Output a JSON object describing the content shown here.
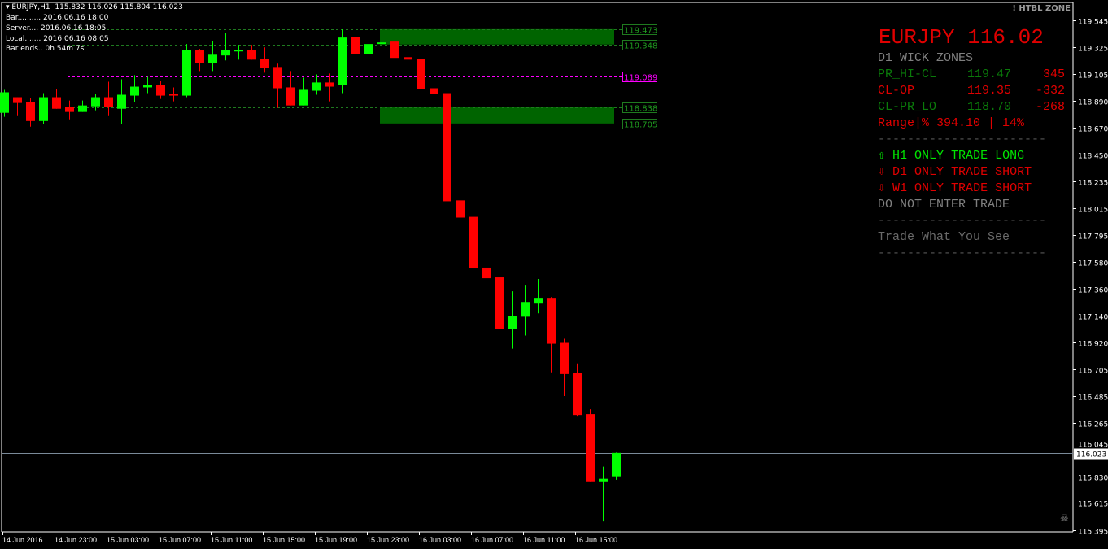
{
  "header": {
    "symbol_line": "EURJPY,H1  115.832 116.026 115.804 116.023",
    "bar": "Bar.......... 2016.06.16 18:00",
    "server": "Server.... 2016.06.16 18:05",
    "local": "Local....... 2016.06.16 08:05",
    "bar_ends": "Bar ends.. 0h 54m 7s"
  },
  "brand": "! HTBL ZONE",
  "panel": {
    "title": "EURJPY 116.02",
    "subtitle": "D1 WICK ZONES",
    "rows": [
      {
        "label": "PR_HI-CL",
        "value": "119.47",
        "points": "345",
        "color": "#0a7a0a",
        "points_color": "#e00000"
      },
      {
        "label": "CL-OP",
        "value": "119.35",
        "points": "-332",
        "color": "#e00000",
        "points_color": "#e00000"
      },
      {
        "label": "CL-PR_LO",
        "value": "118.70",
        "points": "-268",
        "color": "#0a7a0a",
        "points_color": "#e00000"
      }
    ],
    "range": "Range|% 394.10 | 14%",
    "separator": "-----------------------",
    "signals": [
      {
        "icon": "arrow-up",
        "text": "H1 ONLY TRADE LONG",
        "color": "#00e600"
      },
      {
        "icon": "arrow-down",
        "text": "D1 ONLY TRADE SHORT",
        "color": "#e00000"
      },
      {
        "icon": "arrow-down",
        "text": "W1 ONLY TRADE SHORT",
        "color": "#e00000"
      }
    ],
    "advice": "DO NOT ENTER TRADE",
    "motto": "Trade What You See"
  },
  "chart_data": {
    "type": "candlestick",
    "symbol": "EURJPY",
    "timeframe": "H1",
    "colors": {
      "bull": "#00ff00",
      "bear": "#ff0000",
      "zone": "#006400",
      "pivot": "#ff00ff",
      "bid_line": "#7a8a99"
    },
    "y_ticks": [
      "119.545",
      "119.325",
      "119.105",
      "118.890",
      "118.670",
      "118.450",
      "118.235",
      "118.015",
      "117.795",
      "117.580",
      "117.360",
      "117.140",
      "116.920",
      "116.705",
      "116.485",
      "116.265",
      "116.045",
      "115.830",
      "115.615",
      "115.395"
    ],
    "ylim": [
      115.395,
      119.545
    ],
    "x_ticks": [
      "14 Jun 2016",
      "14 Jun 23:00",
      "15 Jun 03:00",
      "15 Jun 07:00",
      "15 Jun 11:00",
      "15 Jun 15:00",
      "15 Jun 19:00",
      "15 Jun 23:00",
      "16 Jun 03:00",
      "16 Jun 07:00",
      "16 Jun 11:00",
      "16 Jun 15:00"
    ],
    "levels": [
      {
        "value": "119.473",
        "kind": "zone-line"
      },
      {
        "value": "119.348",
        "kind": "zone-line"
      },
      {
        "value": "119.089",
        "kind": "pivot"
      },
      {
        "value": "118.838",
        "kind": "zone-line"
      },
      {
        "value": "118.705",
        "kind": "zone-line"
      }
    ],
    "zones": [
      [
        119.473,
        119.348
      ],
      [
        118.838,
        118.705
      ]
    ],
    "bid": "116.023",
    "candles": [
      [
        118.792,
        118.979,
        118.759,
        118.959
      ],
      [
        118.919,
        118.919,
        118.765,
        118.872
      ],
      [
        118.879,
        118.912,
        118.679,
        118.725
      ],
      [
        118.725,
        118.952,
        118.699,
        118.919
      ],
      [
        118.919,
        118.985,
        118.825,
        118.825
      ],
      [
        118.839,
        118.892,
        118.739,
        118.799
      ],
      [
        118.799,
        118.892,
        118.799,
        118.852
      ],
      [
        118.845,
        118.945,
        118.812,
        118.919
      ],
      [
        118.919,
        119.045,
        118.765,
        118.839
      ],
      [
        118.825,
        119.065,
        118.699,
        118.939
      ],
      [
        118.932,
        119.099,
        118.879,
        119.005
      ],
      [
        118.999,
        119.085,
        118.952,
        119.019
      ],
      [
        119.019,
        119.052,
        118.905,
        118.932
      ],
      [
        118.945,
        118.999,
        118.885,
        118.932
      ],
      [
        118.932,
        119.352,
        118.919,
        119.305
      ],
      [
        119.305,
        119.312,
        119.132,
        119.199
      ],
      [
        119.199,
        119.379,
        119.132,
        119.265
      ],
      [
        119.259,
        119.439,
        119.219,
        119.305
      ],
      [
        119.292,
        119.345,
        119.225,
        119.305
      ],
      [
        119.305,
        119.345,
        119.225,
        119.225
      ],
      [
        119.232,
        119.325,
        119.119,
        119.159
      ],
      [
        119.165,
        119.192,
        118.832,
        118.992
      ],
      [
        118.999,
        119.132,
        118.852,
        118.852
      ],
      [
        118.852,
        119.079,
        118.852,
        118.979
      ],
      [
        118.972,
        119.105,
        118.939,
        119.039
      ],
      [
        119.039,
        119.112,
        118.885,
        119.005
      ],
      [
        119.019,
        119.472,
        118.952,
        119.405
      ],
      [
        119.412,
        119.465,
        119.199,
        119.272
      ],
      [
        119.272,
        119.399,
        119.252,
        119.352
      ],
      [
        119.352,
        119.432,
        119.285,
        119.365
      ],
      [
        119.372,
        119.379,
        119.159,
        119.239
      ],
      [
        119.245,
        119.265,
        119.159,
        119.225
      ],
      [
        119.232,
        119.239,
        118.959,
        118.985
      ],
      [
        118.992,
        119.172,
        118.932,
        118.945
      ],
      [
        118.952,
        118.965,
        117.812,
        118.072
      ],
      [
        118.079,
        118.125,
        117.832,
        117.939
      ],
      [
        117.945,
        118.019,
        117.445,
        117.525
      ],
      [
        117.532,
        117.639,
        117.312,
        117.445
      ],
      [
        117.452,
        117.539,
        116.912,
        117.032
      ],
      [
        117.032,
        117.339,
        116.872,
        117.139
      ],
      [
        117.132,
        117.385,
        116.979,
        117.252
      ],
      [
        117.239,
        117.439,
        117.159,
        117.279
      ],
      [
        117.279,
        117.292,
        116.679,
        116.912
      ],
      [
        116.919,
        116.952,
        116.485,
        116.665
      ],
      [
        116.672,
        116.752,
        116.319,
        116.332
      ],
      [
        116.339,
        116.379,
        115.785,
        115.785
      ],
      [
        115.785,
        115.912,
        115.465,
        115.812
      ],
      [
        115.832,
        116.026,
        115.804,
        116.023
      ]
    ]
  }
}
